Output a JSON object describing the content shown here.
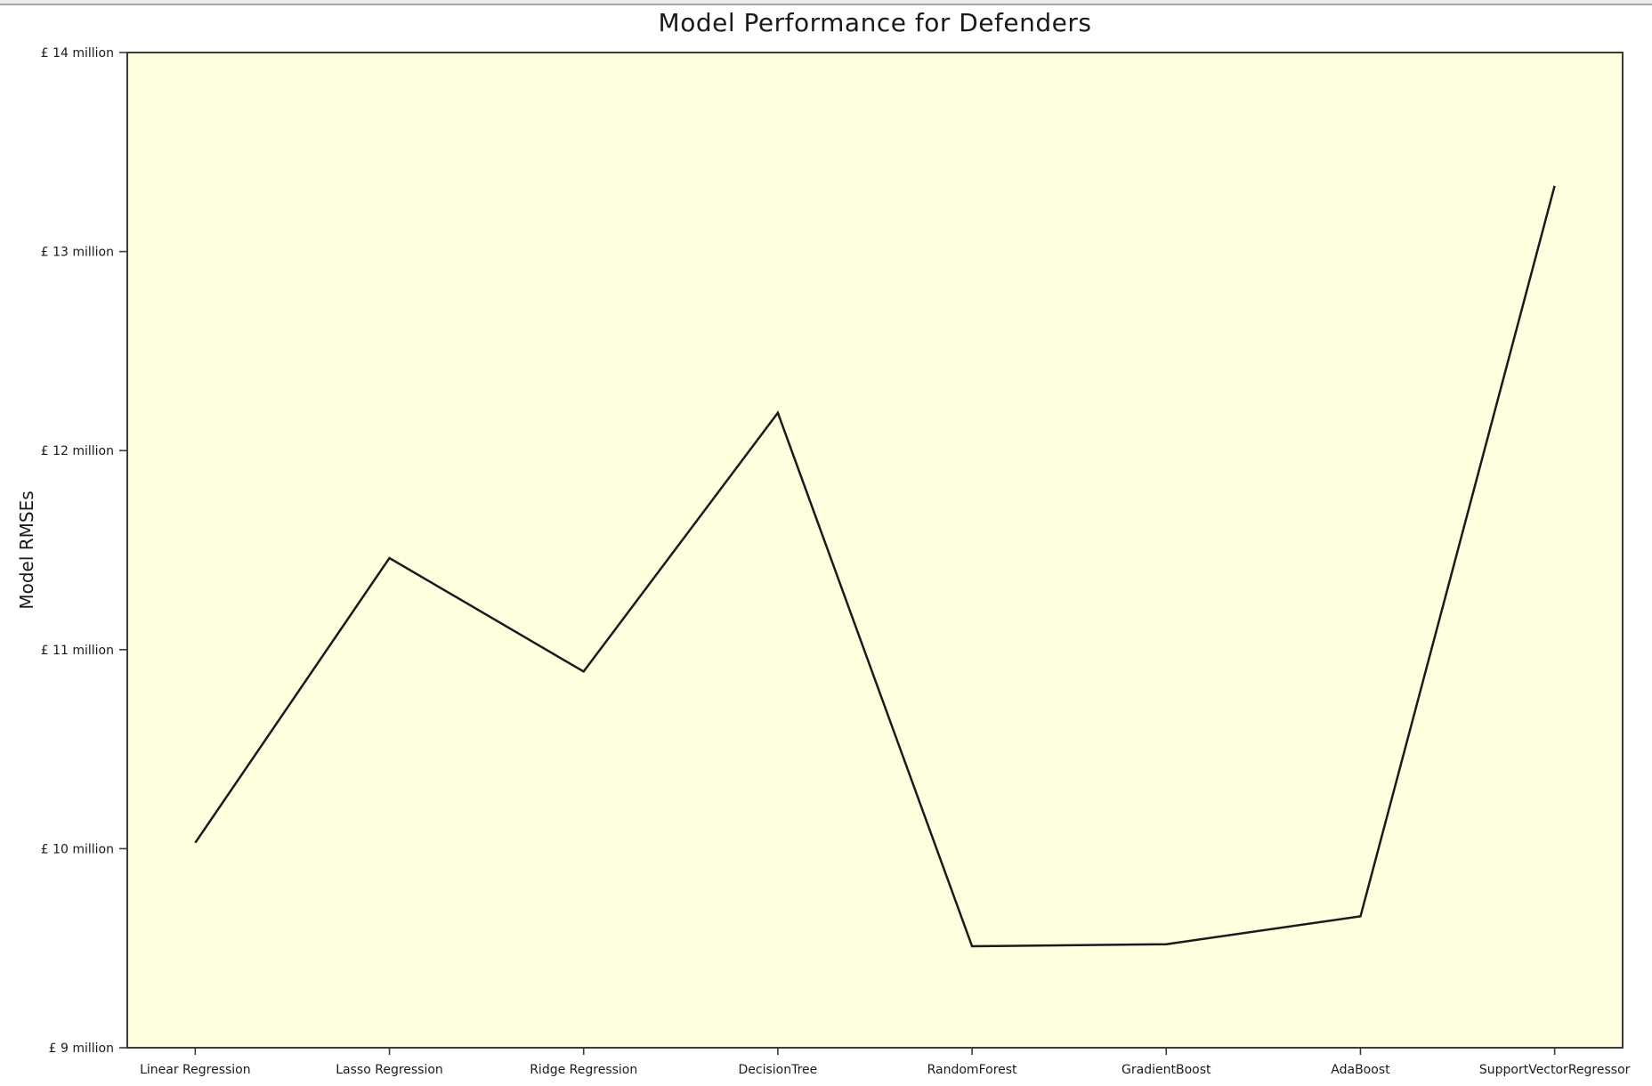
{
  "chart_data": {
    "type": "line",
    "title": "Model Performance for Defenders",
    "xlabel": "",
    "ylabel": "Model RMSEs",
    "categories": [
      "Linear Regression",
      "Lasso Regression",
      "Ridge Regression",
      "DecisionTree",
      "RandomForest",
      "GradientBoost",
      "AdaBoost",
      "SupportVectorRegressor"
    ],
    "values": [
      10.03,
      11.46,
      10.89,
      12.19,
      9.51,
      9.52,
      9.66,
      13.33
    ],
    "values_unit": "million £ (RMSE)",
    "ylim": [
      9,
      14
    ],
    "yticks": [
      9,
      10,
      11,
      12,
      13,
      14
    ],
    "ytick_labels": [
      "£ 9 million",
      "£ 10 million",
      "£ 11 million",
      "£ 12 million",
      "£ 13 million",
      "£ 14 million"
    ],
    "grid": false,
    "legend": null,
    "line_color": "#1a1a1a",
    "plot_bg_color": "#ffffe0",
    "spine_color": "#3a3a3a",
    "x_margin_fraction": 0.05
  }
}
